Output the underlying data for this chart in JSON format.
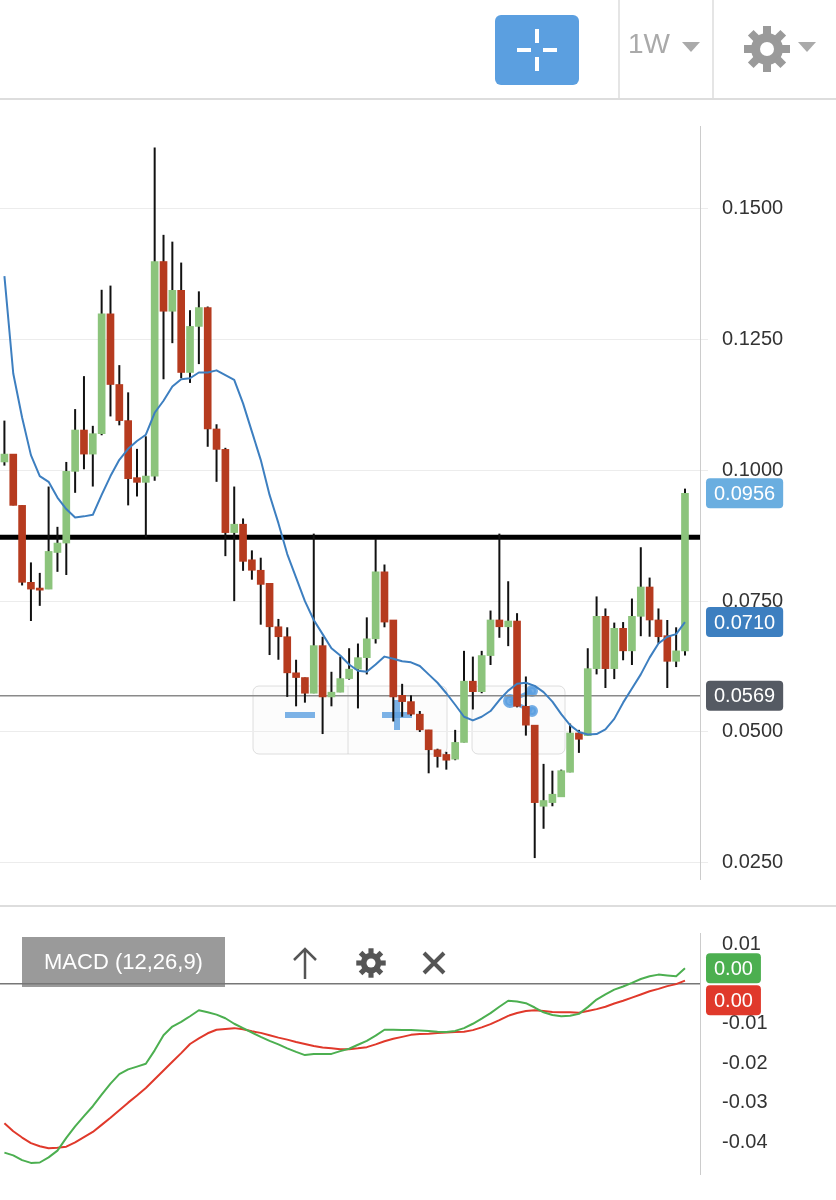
{
  "chart_data": [
    {
      "type": "candlestick",
      "subtitle": "1W",
      "categories": [
        null,
        null,
        null,
        null,
        null,
        null,
        null,
        null,
        null,
        null,
        null,
        null,
        null,
        null,
        null,
        null,
        null,
        null,
        null,
        null,
        null,
        null,
        null,
        null,
        null,
        null,
        null,
        null,
        null,
        null,
        null,
        null,
        null,
        null,
        null,
        null,
        null,
        null,
        null,
        null,
        null,
        null,
        null,
        null,
        null,
        null,
        null,
        null,
        null,
        null,
        null,
        null,
        null,
        null,
        null,
        null,
        null,
        null,
        null,
        null,
        null,
        null,
        null,
        null,
        null,
        null,
        null,
        null,
        null,
        null,
        null,
        null,
        null,
        null,
        null,
        null,
        null,
        null
      ],
      "series": [
        {
          "type": "candlestick",
          "ohlc": [
            [
              0.1016,
              0.1095,
              0.1009,
              0.1031
            ],
            [
              0.1031,
              0.1031,
              0.0933,
              0.0933
            ],
            [
              0.0933,
              0.0933,
              0.078,
              0.0786
            ],
            [
              0.0786,
              0.0824,
              0.0712,
              0.0773
            ],
            [
              0.0775,
              0.0804,
              0.0741,
              0.0771
            ],
            [
              0.0773,
              0.0969,
              0.0773,
              0.0845
            ],
            [
              0.0843,
              0.0892,
              0.0806,
              0.0861
            ],
            [
              0.0861,
              0.1016,
              0.08,
              0.0998
            ],
            [
              0.0998,
              0.1117,
              0.0957,
              0.1077
            ],
            [
              0.1077,
              0.118,
              0.1002,
              0.1031
            ],
            [
              0.1031,
              0.1085,
              0.0969,
              0.107
            ],
            [
              0.107,
              0.1345,
              0.1067,
              0.1299
            ],
            [
              0.1299,
              0.1353,
              0.1103,
              0.1164
            ],
            [
              0.1164,
              0.1201,
              0.1086,
              0.1095
            ],
            [
              0.1095,
              0.1149,
              0.0933,
              0.0984
            ],
            [
              0.0986,
              0.1041,
              0.095,
              0.0977
            ],
            [
              0.0977,
              0.1065,
              0.0872,
              0.0989
            ],
            [
              0.0989,
              0.1617,
              0.098,
              0.1399
            ],
            [
              0.1399,
              0.145,
              0.1174,
              0.1304
            ],
            [
              0.1304,
              0.1437,
              0.1243,
              0.1344
            ],
            [
              0.1344,
              0.1397,
              0.1176,
              0.1187
            ],
            [
              0.1187,
              0.1306,
              0.1167,
              0.1275
            ],
            [
              0.1275,
              0.1342,
              0.1203,
              0.1311
            ],
            [
              0.1311,
              0.1313,
              0.1045,
              0.1079
            ],
            [
              0.1079,
              0.1088,
              0.0978,
              0.104
            ],
            [
              0.104,
              0.1043,
              0.0836,
              0.0881
            ],
            [
              0.0881,
              0.0969,
              0.075,
              0.0897
            ],
            [
              0.0897,
              0.0908,
              0.0808,
              0.0826
            ],
            [
              0.0829,
              0.0847,
              0.0791,
              0.0809
            ],
            [
              0.0809,
              0.0833,
              0.0705,
              0.0782
            ],
            [
              0.0784,
              0.0784,
              0.0647,
              0.0701
            ],
            [
              0.0701,
              0.0716,
              0.0638,
              0.0682
            ],
            [
              0.0682,
              0.07,
              0.0567,
              0.0613
            ],
            [
              0.0613,
              0.0638,
              0.0549,
              0.0604
            ],
            [
              0.0604,
              0.0604,
              0.0556,
              0.0574
            ],
            [
              0.0574,
              0.0879,
              0.0574,
              0.0665
            ],
            [
              0.0665,
              0.0682,
              0.0496,
              0.0567
            ],
            [
              0.0567,
              0.0615,
              0.0549,
              0.0576
            ],
            [
              0.0576,
              0.0644,
              0.0576,
              0.0602
            ],
            [
              0.0602,
              0.066,
              0.06,
              0.062
            ],
            [
              0.062,
              0.0669,
              0.0545,
              0.0642
            ],
            [
              0.0642,
              0.0719,
              0.061,
              0.0678
            ],
            [
              0.0678,
              0.0869,
              0.0669,
              0.0806
            ],
            [
              0.0806,
              0.082,
              0.07,
              0.071
            ],
            [
              0.0714,
              0.0714,
              0.052,
              0.0567
            ],
            [
              0.057,
              0.0592,
              0.0529,
              0.0558
            ],
            [
              0.0558,
              0.057,
              0.0531,
              0.0534
            ],
            [
              0.0534,
              0.054,
              0.05,
              0.0504
            ],
            [
              0.0504,
              0.0504,
              0.0421,
              0.0466
            ],
            [
              0.0466,
              0.0468,
              0.0432,
              0.0453
            ],
            [
              0.0457,
              0.0462,
              0.0428,
              0.0446
            ],
            [
              0.0448,
              0.0504,
              0.0446,
              0.048
            ],
            [
              0.048,
              0.0655,
              0.048,
              0.0597
            ],
            [
              0.0597,
              0.0644,
              0.0543,
              0.0577
            ],
            [
              0.0577,
              0.0655,
              0.0574,
              0.0646
            ],
            [
              0.0646,
              0.0732,
              0.0628,
              0.0714
            ],
            [
              0.0714,
              0.0879,
              0.068,
              0.0701
            ],
            [
              0.0701,
              0.0788,
              0.0664,
              0.0712
            ],
            [
              0.0712,
              0.0727,
              0.0547,
              0.0549
            ],
            [
              0.0549,
              0.0606,
              0.0493,
              0.0513
            ],
            [
              0.0513,
              0.0513,
              0.0259,
              0.0365
            ],
            [
              0.0358,
              0.0439,
              0.0315,
              0.0369
            ],
            [
              0.0365,
              0.0426,
              0.0358,
              0.0381
            ],
            [
              0.0376,
              0.0428,
              0.0376,
              0.0426
            ],
            [
              0.0423,
              0.0516,
              0.0423,
              0.0498
            ],
            [
              0.0498,
              0.0504,
              0.046,
              0.0486
            ],
            [
              0.0493,
              0.066,
              0.0493,
              0.0621
            ],
            [
              0.0621,
              0.0759,
              0.061,
              0.0721
            ],
            [
              0.0721,
              0.0736,
              0.0584,
              0.0621
            ],
            [
              0.0621,
              0.0709,
              0.0601,
              0.0698
            ],
            [
              0.0698,
              0.071,
              0.0637,
              0.0655
            ],
            [
              0.0655,
              0.0755,
              0.0628,
              0.0721
            ],
            [
              0.0721,
              0.0853,
              0.0683,
              0.0777
            ],
            [
              0.0777,
              0.0795,
              0.0682,
              0.0714
            ],
            [
              0.0714,
              0.0736,
              0.0669,
              0.0682
            ],
            [
              0.0684,
              0.0714,
              0.0584,
              0.0635
            ],
            [
              0.0635,
              0.07,
              0.0624,
              0.0655
            ],
            [
              0.0655,
              0.0965,
              0.0646,
              0.0956
            ]
          ],
          "colors": [
            "#8cc47c",
            "#b63b1f",
            "#b63b1f",
            "#b63b1f",
            "#b63b1f",
            "#8cc47c",
            "#8cc47c",
            "#8cc47c",
            "#8cc47c",
            "#b63b1f",
            "#8cc47c",
            "#8cc47c",
            "#b63b1f",
            "#b63b1f",
            "#b63b1f",
            "#b63b1f",
            "#8cc47c",
            "#8cc47c",
            "#b63b1f",
            "#8cc47c",
            "#b63b1f",
            "#8cc47c",
            "#8cc47c",
            "#b63b1f",
            "#b63b1f",
            "#b63b1f",
            "#8cc47c",
            "#b63b1f",
            "#b63b1f",
            "#b63b1f",
            "#b63b1f",
            "#b63b1f",
            "#b63b1f",
            "#b63b1f",
            "#b63b1f",
            "#8cc47c",
            "#b63b1f",
            "#8cc47c",
            "#8cc47c",
            "#8cc47c",
            "#8cc47c",
            "#8cc47c",
            "#8cc47c",
            "#b63b1f",
            "#b63b1f",
            "#b63b1f",
            "#b63b1f",
            "#b63b1f",
            "#b63b1f",
            "#b63b1f",
            "#b63b1f",
            "#8cc47c",
            "#8cc47c",
            "#b63b1f",
            "#8cc47c",
            "#8cc47c",
            "#b63b1f",
            "#8cc47c",
            "#b63b1f",
            "#b63b1f",
            "#b63b1f",
            "#8cc47c",
            "#8cc47c",
            "#8cc47c",
            "#8cc47c",
            "#b63b1f",
            "#8cc47c",
            "#8cc47c",
            "#b63b1f",
            "#8cc47c",
            "#b63b1f",
            "#8cc47c",
            "#8cc47c",
            "#b63b1f",
            "#b63b1f",
            "#b63b1f",
            "#8cc47c",
            "#8cc47c"
          ],
          "value_labels": [
            null,
            null,
            null,
            null,
            null,
            null,
            null,
            null,
            null,
            null,
            null,
            null,
            null,
            null,
            null,
            null,
            null,
            null,
            null,
            null,
            null,
            null,
            null,
            null,
            null,
            null,
            null,
            null,
            null,
            null,
            null,
            null,
            null,
            null,
            null,
            null,
            null,
            null,
            null,
            null,
            null,
            null,
            null,
            null,
            null,
            null,
            null,
            null,
            null,
            null,
            null,
            null,
            null,
            null,
            null,
            null,
            null,
            null,
            null,
            null,
            null,
            null,
            null,
            null,
            null,
            null,
            null,
            null,
            null,
            null,
            null,
            null,
            null,
            null,
            null,
            null,
            null,
            "0.0956"
          ]
        },
        {
          "type": "line",
          "color": "#3d7fc0",
          "values": [
            0.1371,
            0.1185,
            0.1101,
            0.1029,
            0.0989,
            0.0978,
            0.0948,
            0.0926,
            0.091,
            0.0912,
            0.0915,
            0.0953,
            0.0989,
            0.102,
            0.1041,
            0.1056,
            0.1068,
            0.111,
            0.1133,
            0.116,
            0.1174,
            0.1176,
            0.1187,
            0.1187,
            0.1191,
            0.1182,
            0.1173,
            0.1128,
            0.1074,
            0.102,
            0.0953,
            0.0899,
            0.084,
            0.0795,
            0.075,
            0.0714,
            0.0687,
            0.066,
            0.0646,
            0.0629,
            0.0617,
            0.0615,
            0.0629,
            0.0644,
            0.064,
            0.0635,
            0.0633,
            0.0626,
            0.061,
            0.0594,
            0.0574,
            0.0552,
            0.0529,
            0.0522,
            0.0529,
            0.054,
            0.0561,
            0.0579,
            0.0592,
            0.0594,
            0.0588,
            0.0576,
            0.0558,
            0.0534,
            0.0513,
            0.05,
            0.0495,
            0.0496,
            0.0505,
            0.0525,
            0.0556,
            0.0583,
            0.061,
            0.0642,
            0.0669,
            0.0682,
            0.0687,
            0.071
          ],
          "value_labels": [
            null,
            null,
            null,
            null,
            null,
            null,
            null,
            null,
            null,
            null,
            null,
            null,
            null,
            null,
            null,
            null,
            null,
            null,
            null,
            null,
            null,
            null,
            null,
            null,
            null,
            null,
            null,
            null,
            null,
            null,
            null,
            null,
            null,
            null,
            null,
            null,
            null,
            null,
            null,
            null,
            null,
            null,
            null,
            null,
            null,
            null,
            null,
            null,
            null,
            null,
            null,
            null,
            null,
            null,
            null,
            null,
            null,
            null,
            null,
            null,
            null,
            null,
            null,
            null,
            null,
            null,
            null,
            null,
            null,
            null,
            null,
            null,
            null,
            null,
            null,
            null,
            null,
            "0.0710"
          ]
        }
      ],
      "ylim": [
        0.0219,
        0.1658
      ],
      "yticks": [
        {
          "value": 0.025,
          "label": "0.0250"
        },
        {
          "value": 0.05,
          "label": "0.0500"
        },
        {
          "value": 0.075,
          "label": "0.0750"
        },
        {
          "value": 0.1,
          "label": "0.1000"
        },
        {
          "value": 0.125,
          "label": "0.1250"
        },
        {
          "value": 0.15,
          "label": "0.1500"
        }
      ],
      "grid": "y",
      "tick_labels": "y",
      "marker": "none",
      "ref_lines": [
        {
          "axis": "y",
          "value": 0.0872,
          "color": "#000000"
        },
        {
          "axis": "y",
          "value": 0.0569,
          "label": "0.0569",
          "color": "#8a8a8a"
        }
      ]
    },
    {
      "type": "line",
      "title": "MACD (12,26,9)",
      "categories": [
        null,
        null,
        null,
        null,
        null,
        null,
        null,
        null,
        null,
        null,
        null,
        null,
        null,
        null,
        null,
        null,
        null,
        null,
        null,
        null,
        null,
        null,
        null,
        null,
        null,
        null,
        null,
        null,
        null,
        null,
        null,
        null,
        null,
        null,
        null,
        null,
        null,
        null,
        null,
        null,
        null,
        null,
        null,
        null,
        null,
        null,
        null,
        null,
        null,
        null,
        null,
        null,
        null,
        null,
        null,
        null,
        null,
        null,
        null,
        null,
        null,
        null,
        null,
        null,
        null,
        null,
        null,
        null,
        null,
        null,
        null,
        null,
        null,
        null,
        null,
        null,
        null,
        null
      ],
      "series": [
        {
          "color": "#4caf50",
          "values": [
            -0.0426,
            -0.0433,
            -0.0445,
            -0.0452,
            -0.0451,
            -0.0438,
            -0.0421,
            -0.0389,
            -0.036,
            -0.0334,
            -0.0309,
            -0.028,
            -0.0252,
            -0.0228,
            -0.0216,
            -0.0209,
            -0.0202,
            -0.0168,
            -0.013,
            -0.0108,
            -0.0096,
            -0.0082,
            -0.0067,
            -0.0072,
            -0.0078,
            -0.0087,
            -0.0101,
            -0.0112,
            -0.0123,
            -0.0134,
            -0.0144,
            -0.0153,
            -0.0163,
            -0.0172,
            -0.018,
            -0.0177,
            -0.0177,
            -0.0177,
            -0.017,
            -0.0164,
            -0.0154,
            -0.0144,
            -0.0131,
            -0.0116,
            -0.0116,
            -0.0117,
            -0.0117,
            -0.0118,
            -0.0119,
            -0.0121,
            -0.0122,
            -0.0119,
            -0.0112,
            -0.0101,
            -0.0088,
            -0.0074,
            -0.0058,
            -0.0043,
            -0.0045,
            -0.0049,
            -0.006,
            -0.0072,
            -0.0079,
            -0.0082,
            -0.0081,
            -0.0076,
            -0.0059,
            -0.004,
            -0.0027,
            -0.0015,
            -0.0007,
            0.0002,
            0.0012,
            0.0019,
            0.0023,
            0.0021,
            0.0019,
            0.0039
          ],
          "value_labels": [
            null,
            null,
            null,
            null,
            null,
            null,
            null,
            null,
            null,
            null,
            null,
            null,
            null,
            null,
            null,
            null,
            null,
            null,
            null,
            null,
            null,
            null,
            null,
            null,
            null,
            null,
            null,
            null,
            null,
            null,
            null,
            null,
            null,
            null,
            null,
            null,
            null,
            null,
            null,
            null,
            null,
            null,
            null,
            null,
            null,
            null,
            null,
            null,
            null,
            null,
            null,
            null,
            null,
            null,
            null,
            null,
            null,
            null,
            null,
            null,
            null,
            null,
            null,
            null,
            null,
            null,
            null,
            null,
            null,
            null,
            null,
            null,
            null,
            null,
            null,
            null,
            null,
            "0.00"
          ]
        },
        {
          "color": "#e0392b",
          "values": [
            -0.0352,
            -0.0372,
            -0.0388,
            -0.0402,
            -0.041,
            -0.0415,
            -0.0414,
            -0.0411,
            -0.04,
            -0.0387,
            -0.0374,
            -0.0356,
            -0.0338,
            -0.0319,
            -0.03,
            -0.0282,
            -0.0263,
            -0.0241,
            -0.0219,
            -0.0197,
            -0.0175,
            -0.0152,
            -0.0138,
            -0.0125,
            -0.0116,
            -0.0114,
            -0.0112,
            -0.0115,
            -0.012,
            -0.0124,
            -0.013,
            -0.0136,
            -0.0141,
            -0.0147,
            -0.0152,
            -0.0157,
            -0.0161,
            -0.0163,
            -0.0165,
            -0.0165,
            -0.0163,
            -0.016,
            -0.0153,
            -0.0145,
            -0.0139,
            -0.0134,
            -0.0129,
            -0.0127,
            -0.0126,
            -0.0124,
            -0.0123,
            -0.0122,
            -0.0121,
            -0.0117,
            -0.011,
            -0.0102,
            -0.0092,
            -0.0081,
            -0.0074,
            -0.0069,
            -0.0067,
            -0.0069,
            -0.0071,
            -0.0072,
            -0.0072,
            -0.0073,
            -0.0069,
            -0.0064,
            -0.0058,
            -0.005,
            -0.0043,
            -0.0035,
            -0.0027,
            -0.0019,
            -0.0013,
            -0.0006,
            -0.0001,
            0.0008
          ],
          "value_labels": [
            null,
            null,
            null,
            null,
            null,
            null,
            null,
            null,
            null,
            null,
            null,
            null,
            null,
            null,
            null,
            null,
            null,
            null,
            null,
            null,
            null,
            null,
            null,
            null,
            null,
            null,
            null,
            null,
            null,
            null,
            null,
            null,
            null,
            null,
            null,
            null,
            null,
            null,
            null,
            null,
            null,
            null,
            null,
            null,
            null,
            null,
            null,
            null,
            null,
            null,
            null,
            null,
            null,
            null,
            null,
            null,
            null,
            null,
            null,
            null,
            null,
            null,
            null,
            null,
            null,
            null,
            null,
            null,
            null,
            null,
            null,
            null,
            null,
            null,
            null,
            null,
            null,
            "0.00"
          ]
        }
      ],
      "ylim": [
        -0.048,
        0.0128
      ],
      "yticks": [
        0.01,
        {
          "value": 0,
          "label": null
        },
        -0.01,
        -0.02,
        -0.03,
        -0.04
      ],
      "tick_labels": "y",
      "marker": "none",
      "ref_lines": [
        {
          "axis": "y",
          "value": 0,
          "color": "#777777"
        }
      ]
    }
  ]
}
